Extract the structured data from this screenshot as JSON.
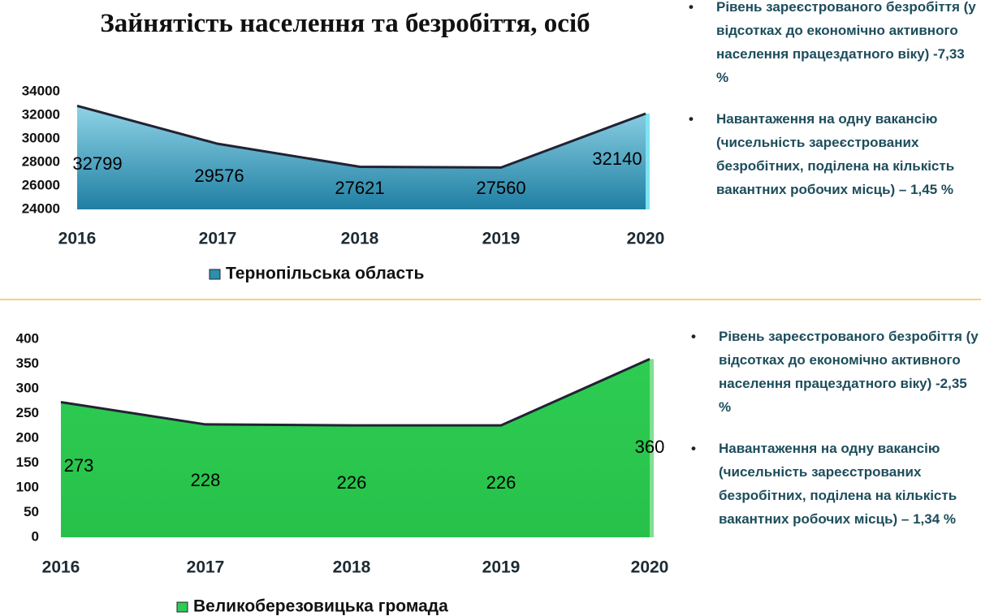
{
  "chart_data": [
    {
      "type": "area",
      "title": "Зайнятість населення та безробіття, осіб",
      "categories": [
        "2016",
        "2017",
        "2018",
        "2019",
        "2020"
      ],
      "series": [
        {
          "name": "Тернопільська область",
          "color": "#2b8fb0",
          "values": [
            32799,
            29576,
            27621,
            27560,
            32140
          ]
        }
      ],
      "ylim": [
        24000,
        34000
      ],
      "yticks": [
        24000,
        26000,
        28000,
        30000,
        32000,
        34000
      ],
      "notes": [
        "Рівень зареєстрованого безробіття (у відсотках до економічно активного населення працездатного віку) -7,33 %",
        "Навантаження на одну вакансію (чисельність зареєстрованих безробітних, поділена на кількість вакантних робочих місць) – 1,45 %"
      ]
    },
    {
      "type": "area",
      "categories": [
        "2016",
        "2017",
        "2018",
        "2019",
        "2020"
      ],
      "series": [
        {
          "name": "Великоберезовицька громада",
          "color": "#2ecc52",
          "values": [
            273,
            228,
            226,
            226,
            360
          ]
        }
      ],
      "ylim": [
        0,
        400
      ],
      "yticks": [
        0,
        50,
        100,
        150,
        200,
        250,
        300,
        350,
        400
      ],
      "notes": [
        "Рівень зареєстрованого безробіття (у відсотках до економічно активного населення працездатного віку) -2,35 %",
        "Навантаження на одну вакансію (чисельність зареєстрованих безробітних, поділена на кількість вакантних робочих місць) – 1,34 %"
      ]
    }
  ]
}
